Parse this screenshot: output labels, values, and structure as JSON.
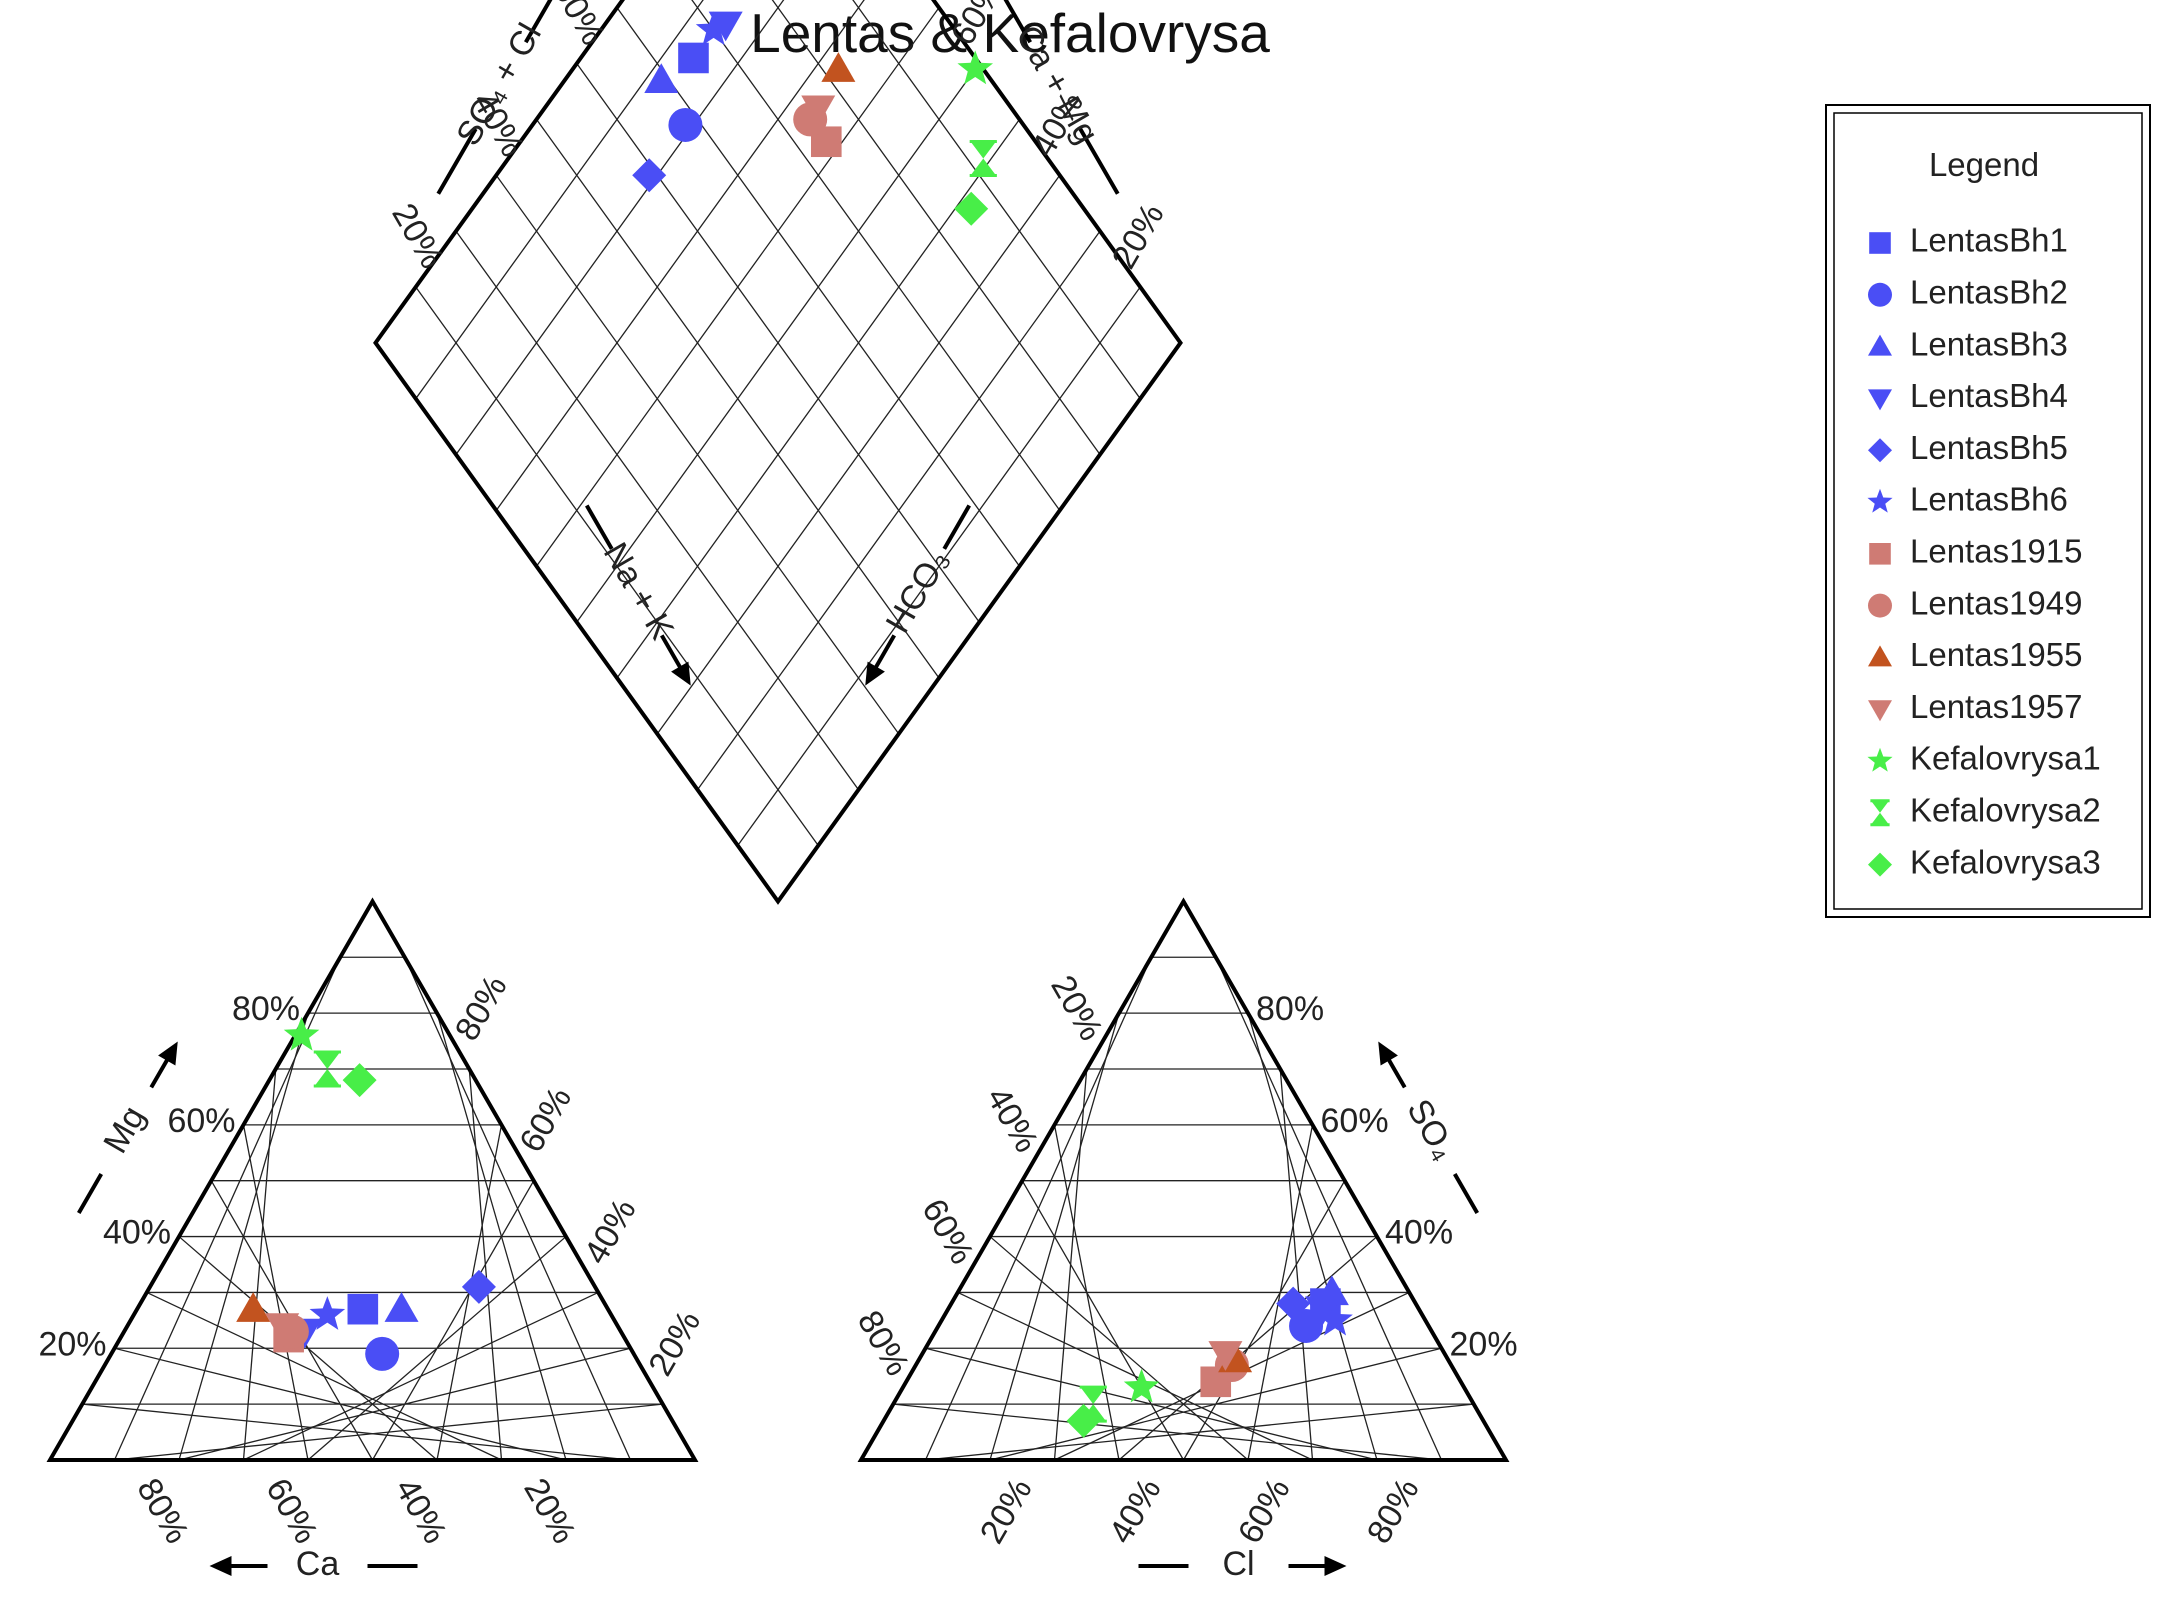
{
  "chart_data": {
    "type": "scatter",
    "subtype": "piper-diagram",
    "title": "Lentas & Kefalovrysa",
    "legend": {
      "title": "Legend",
      "position": "top-right"
    },
    "grid": true,
    "tick_labels": [
      "20%",
      "40%",
      "60%",
      "80%"
    ],
    "axis_labels": {
      "ca": "Ca",
      "mg": "Mg",
      "na_k": "Na + K",
      "cl": "Cl",
      "so4": "SO₄",
      "hco3": "HCO₃",
      "so4_cl": "SO₄ + Cl",
      "ca_mg": "Ca + Mg"
    },
    "series": [
      {
        "name": "LentasBh1",
        "color": "#4a4ef5",
        "marker": "square",
        "cations": {
          "Ca": 38,
          "Mg": 27,
          "NaK": 35
        },
        "anions": {
          "Cl": 58,
          "SO4": 28,
          "HCO3": 14
        }
      },
      {
        "name": "LentasBh2",
        "color": "#4a4ef5",
        "marker": "circle",
        "cations": {
          "Ca": 39,
          "Mg": 19,
          "NaK": 42
        },
        "anions": {
          "Cl": 57,
          "SO4": 24,
          "HCO3": 19
        }
      },
      {
        "name": "LentasBh3",
        "color": "#4a4ef5",
        "marker": "triangle-up",
        "cations": {
          "Ca": 32,
          "Mg": 27,
          "NaK": 41
        },
        "anions": {
          "Cl": 58,
          "SO4": 30,
          "HCO3": 12
        }
      },
      {
        "name": "LentasBh4",
        "color": "#4a4ef5",
        "marker": "triangle-down",
        "cations": {
          "Ca": 49,
          "Mg": 23,
          "NaK": 28
        },
        "anions": {
          "Cl": 58,
          "SO4": 27,
          "HCO3": 15
        }
      },
      {
        "name": "LentasBh5",
        "color": "#4a4ef5",
        "marker": "diamond",
        "cations": {
          "Ca": 18,
          "Mg": 31,
          "NaK": 51
        },
        "anions": {
          "Cl": 53,
          "SO4": 28,
          "HCO3": 19
        }
      },
      {
        "name": "LentasBh6",
        "color": "#4a4ef5",
        "marker": "star",
        "cations": {
          "Ca": 44,
          "Mg": 26,
          "NaK": 30
        },
        "anions": {
          "Cl": 61,
          "SO4": 25,
          "HCO3": 14
        }
      },
      {
        "name": "Lentas1915",
        "color": "#cf7b74",
        "marker": "square",
        "cations": {
          "Ca": 52,
          "Mg": 22,
          "NaK": 26
        },
        "anions": {
          "Cl": 48,
          "SO4": 14,
          "HCO3": 38
        }
      },
      {
        "name": "Lentas1949",
        "color": "#cf7b74",
        "marker": "circle",
        "cations": {
          "Ca": 51,
          "Mg": 23,
          "NaK": 26
        },
        "anions": {
          "Cl": 49,
          "SO4": 17,
          "HCO3": 34
        }
      },
      {
        "name": "Lentas1955",
        "color": "#c2531f",
        "marker": "triangle-up",
        "cations": {
          "Ca": 55,
          "Mg": 27,
          "NaK": 18
        },
        "anions": {
          "Cl": 49,
          "SO4": 18,
          "HCO3": 33
        }
      },
      {
        "name": "Lentas1957",
        "color": "#cf7b74",
        "marker": "triangle-down",
        "cations": {
          "Ca": 52,
          "Mg": 24,
          "NaK": 24
        },
        "anions": {
          "Cl": 47,
          "SO4": 19,
          "HCO3": 34
        }
      },
      {
        "name": "Kefalovrysa1",
        "color": "#48ee48",
        "marker": "star",
        "cations": {
          "Ca": 23,
          "Mg": 76,
          "NaK": 1
        },
        "anions": {
          "Cl": 37,
          "SO4": 13,
          "HCO3": 50
        }
      },
      {
        "name": "Kefalovrysa2",
        "color": "#48ee48",
        "marker": "hourglass",
        "cations": {
          "Ca": 22,
          "Mg": 70,
          "NaK": 8
        },
        "anions": {
          "Cl": 31,
          "SO4": 10,
          "HCO3": 59
        }
      },
      {
        "name": "Kefalovrysa3",
        "color": "#48ee48",
        "marker": "diamond",
        "cations": {
          "Ca": 18,
          "Mg": 68,
          "NaK": 14
        },
        "anions": {
          "Cl": 31,
          "SO4": 7,
          "HCO3": 62
        }
      }
    ]
  }
}
